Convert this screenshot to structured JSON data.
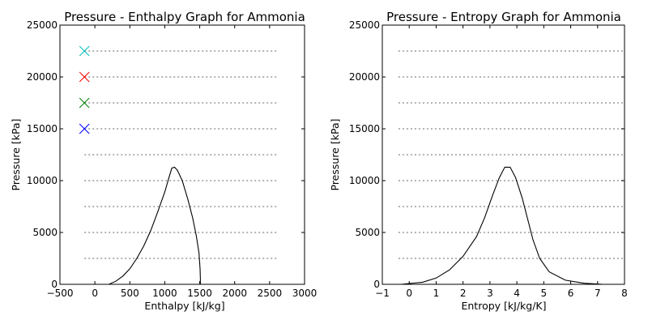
{
  "chart_data": [
    {
      "type": "line",
      "title": "Pressure - Enthalpy Graph for Ammonia",
      "xlabel": "Enthalpy [kJ/kg]",
      "ylabel": "Pressure [kPa]",
      "xlim": [
        -500,
        3000
      ],
      "ylim": [
        0,
        25000
      ],
      "xticks": [
        -500,
        0,
        500,
        1000,
        1500,
        2000,
        2500,
        3000
      ],
      "yticks": [
        0,
        5000,
        10000,
        15000,
        20000,
        25000
      ],
      "xtick_labels": [
        "−500",
        "0",
        "500",
        "1000",
        "1500",
        "2000",
        "2500",
        "3000"
      ],
      "ytick_labels": [
        "0",
        "5000",
        "10000",
        "15000",
        "20000",
        "25000"
      ],
      "grid": false,
      "dome": {
        "color": "#000000",
        "points": [
          [
            200,
            0
          ],
          [
            300,
            300
          ],
          [
            400,
            800
          ],
          [
            500,
            1500
          ],
          [
            600,
            2500
          ],
          [
            700,
            3700
          ],
          [
            800,
            5200
          ],
          [
            900,
            7000
          ],
          [
            1000,
            8900
          ],
          [
            1060,
            10300
          ],
          [
            1100,
            11200
          ],
          [
            1140,
            11300
          ],
          [
            1180,
            11000
          ],
          [
            1250,
            10000
          ],
          [
            1330,
            8200
          ],
          [
            1400,
            6400
          ],
          [
            1450,
            4700
          ],
          [
            1490,
            3000
          ],
          [
            1505,
            1500
          ],
          [
            1510,
            500
          ],
          [
            1508,
            0
          ]
        ]
      },
      "isobars": {
        "style": "dotted",
        "color": "#999999",
        "x_range": [
          -150,
          2600
        ],
        "pressures": [
          2500,
          5000,
          7500,
          10000,
          12500,
          15000,
          17500,
          20000,
          22500
        ]
      },
      "markers": {
        "shape": "x",
        "points": [
          {
            "x": -150,
            "y": 15000,
            "color": "#0000ff"
          },
          {
            "x": -150,
            "y": 17500,
            "color": "#008000"
          },
          {
            "x": -150,
            "y": 20000,
            "color": "#ff0000"
          },
          {
            "x": -150,
            "y": 22500,
            "color": "#00bfbf"
          }
        ]
      }
    },
    {
      "type": "line",
      "title": "Pressure - Entropy Graph for Ammonia",
      "xlabel": "Entropy [kJ/kg/K]",
      "ylabel": "Pressure [kPa]",
      "xlim": [
        -1,
        8
      ],
      "ylim": [
        0,
        25000
      ],
      "xticks": [
        -1,
        0,
        1,
        2,
        3,
        4,
        5,
        6,
        7,
        8
      ],
      "yticks": [
        0,
        5000,
        10000,
        15000,
        20000,
        25000
      ],
      "xtick_labels": [
        "−1",
        "0",
        "1",
        "2",
        "3",
        "4",
        "5",
        "6",
        "7",
        "8"
      ],
      "ytick_labels": [
        "0",
        "5000",
        "10000",
        "15000",
        "20000",
        "25000"
      ],
      "grid": false,
      "dome": {
        "color": "#000000",
        "points": [
          [
            -0.3,
            0
          ],
          [
            0.5,
            200
          ],
          [
            1.0,
            600
          ],
          [
            1.5,
            1400
          ],
          [
            2.0,
            2700
          ],
          [
            2.5,
            4600
          ],
          [
            2.8,
            6400
          ],
          [
            3.1,
            8600
          ],
          [
            3.35,
            10300
          ],
          [
            3.55,
            11300
          ],
          [
            3.75,
            11300
          ],
          [
            3.95,
            10300
          ],
          [
            4.2,
            8300
          ],
          [
            4.4,
            6300
          ],
          [
            4.6,
            4300
          ],
          [
            4.85,
            2500
          ],
          [
            5.2,
            1200
          ],
          [
            5.8,
            400
          ],
          [
            6.5,
            100
          ],
          [
            7.2,
            0
          ]
        ]
      },
      "isobars": {
        "style": "dotted",
        "color": "#999999",
        "x_range": [
          -0.4,
          8
        ],
        "pressures": [
          2500,
          5000,
          7500,
          10000,
          12500,
          15000,
          17500,
          20000,
          22500
        ]
      }
    }
  ]
}
